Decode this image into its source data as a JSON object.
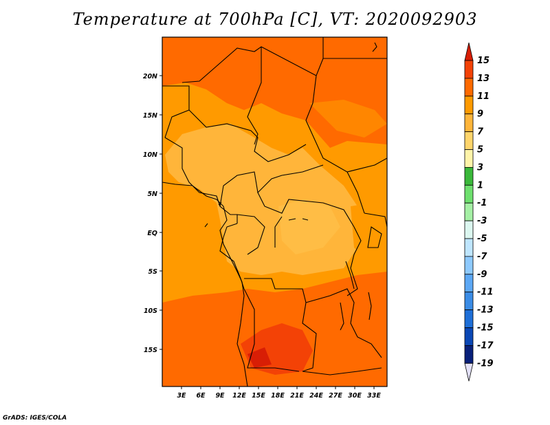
{
  "title": "Temperature at 700hPa [C], VT: 2020092903",
  "credit": "GrADS: IGES/COLA",
  "map": {
    "variable": "Temperature at 700hPa",
    "units": "C",
    "valid_time": "2020092903",
    "lon_ticks": [
      "3E",
      "6E",
      "9E",
      "12E",
      "15E",
      "18E",
      "21E",
      "24E",
      "27E",
      "30E",
      "33E"
    ],
    "lat_ticks": [
      "20N",
      "15N",
      "10N",
      "5N",
      "EQ",
      "5S",
      "10S",
      "15S"
    ]
  },
  "colorbar": {
    "labels": [
      "15",
      "13",
      "11",
      "9",
      "7",
      "5",
      "3",
      "1",
      "-1",
      "-3",
      "-5",
      "-7",
      "-9",
      "-11",
      "-13",
      "-15",
      "-17",
      "-19"
    ],
    "colors": [
      "#d81e05",
      "#f34206",
      "#ff6a00",
      "#ff9a00",
      "#ffb53a",
      "#ffd56b",
      "#fff4a9",
      "#3ab83a",
      "#6ee06e",
      "#a5f0a5",
      "#dcf7f0",
      "#bfe6ff",
      "#8ecaff",
      "#5ca8f5",
      "#3a8ce6",
      "#1e6fd8",
      "#0a47b5",
      "#08207a",
      "#e3e1f7"
    ]
  }
}
